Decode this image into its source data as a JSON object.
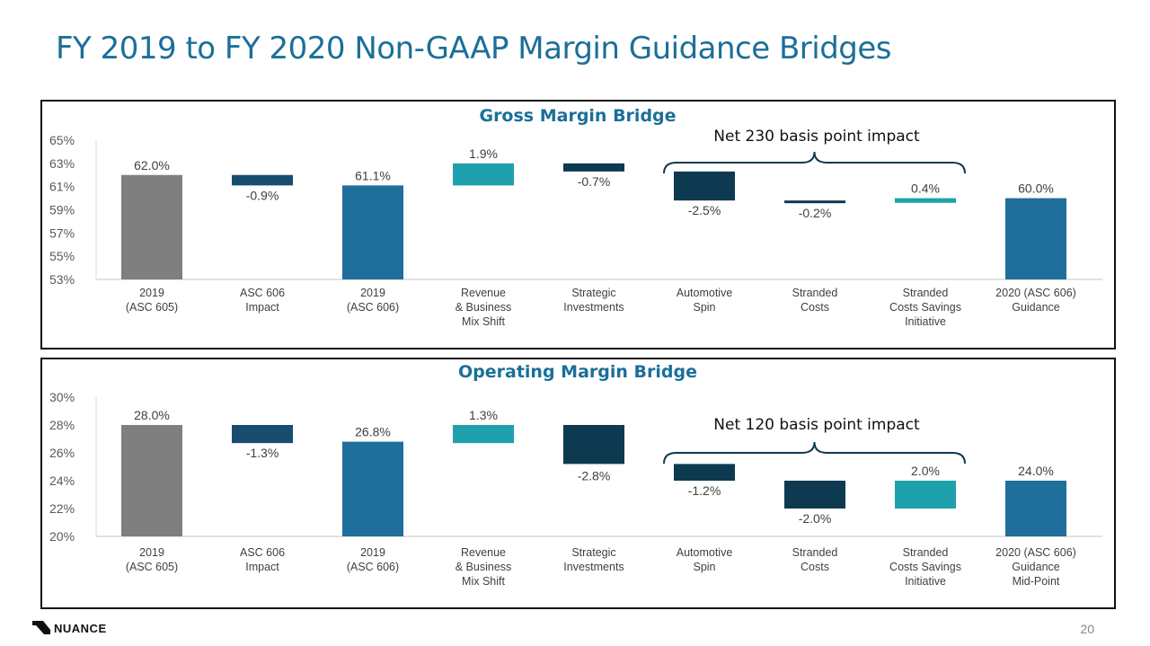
{
  "slide": {
    "title": "FY 2019 to FY 2020 Non-GAAP Margin Guidance Bridges",
    "page_number": "20",
    "logo_text": "NUANCE"
  },
  "colors": {
    "gray": "#7f7f7f",
    "blue_mid": "#1f6e9c",
    "blue_dark": "#0d3a50",
    "navy": "#174d6e",
    "teal": "#1fa0ad"
  },
  "chart_data": [
    {
      "type": "bar",
      "title": "Gross Margin Bridge",
      "annotation": "Net 230 basis point impact",
      "categories": [
        [
          "2019",
          "(ASC 605)"
        ],
        [
          "ASC 606",
          "Impact"
        ],
        [
          "2019",
          "(ASC 606)"
        ],
        [
          "Revenue",
          "& Business",
          "Mix Shift"
        ],
        [
          "Strategic",
          "Investments"
        ],
        [
          "Automotive",
          "Spin"
        ],
        [
          "Stranded",
          "Costs"
        ],
        [
          "Stranded",
          "Costs Savings",
          "Initiative"
        ],
        [
          "2020 (ASC 606)",
          "Guidance"
        ]
      ],
      "bars": [
        {
          "start": 53.0,
          "end": 62.0,
          "label": "62.0%",
          "color": "gray"
        },
        {
          "start": 62.0,
          "end": 61.1,
          "label": "-0.9%",
          "color": "navy"
        },
        {
          "start": 53.0,
          "end": 61.1,
          "label": "61.1%",
          "color": "blue_mid"
        },
        {
          "start": 61.1,
          "end": 63.0,
          "label": "1.9%",
          "color": "teal"
        },
        {
          "start": 63.0,
          "end": 62.3,
          "label": "-0.7%",
          "color": "blue_dark"
        },
        {
          "start": 62.3,
          "end": 59.8,
          "label": "-2.5%",
          "color": "blue_dark"
        },
        {
          "start": 59.8,
          "end": 59.6,
          "label": "-0.2%",
          "color": "blue_dark"
        },
        {
          "start": 59.6,
          "end": 60.0,
          "label": "0.4%",
          "color": "teal"
        },
        {
          "start": 53.0,
          "end": 60.0,
          "label": "60.0%",
          "color": "blue_mid"
        }
      ],
      "yticks": [
        "53%",
        "55%",
        "57%",
        "59%",
        "61%",
        "63%",
        "65%"
      ],
      "ylim": [
        53,
        65
      ]
    },
    {
      "type": "bar",
      "title": "Operating Margin Bridge",
      "annotation": "Net 120 basis point impact",
      "categories": [
        [
          "2019",
          "(ASC 605)"
        ],
        [
          "ASC 606",
          "Impact"
        ],
        [
          "2019",
          "(ASC 606)"
        ],
        [
          "Revenue",
          "& Business",
          "Mix Shift"
        ],
        [
          "Strategic",
          "Investments"
        ],
        [
          "Automotive",
          "Spin"
        ],
        [
          "Stranded",
          "Costs"
        ],
        [
          "Stranded",
          "Costs Savings",
          "Initiative"
        ],
        [
          "2020 (ASC 606)",
          "Guidance",
          "Mid-Point"
        ]
      ],
      "bars": [
        {
          "start": 20.0,
          "end": 28.0,
          "label": "28.0%",
          "color": "gray"
        },
        {
          "start": 28.0,
          "end": 26.7,
          "label": "-1.3%",
          "color": "navy"
        },
        {
          "start": 20.0,
          "end": 26.8,
          "label": "26.8%",
          "color": "blue_mid"
        },
        {
          "start": 26.7,
          "end": 28.0,
          "label": "1.3%",
          "color": "teal"
        },
        {
          "start": 28.0,
          "end": 25.2,
          "label": "-2.8%",
          "color": "blue_dark"
        },
        {
          "start": 25.2,
          "end": 24.0,
          "label": "-1.2%",
          "color": "blue_dark"
        },
        {
          "start": 24.0,
          "end": 22.0,
          "label": "-2.0%",
          "color": "blue_dark"
        },
        {
          "start": 22.0,
          "end": 24.0,
          "label": "2.0%",
          "color": "teal"
        },
        {
          "start": 20.0,
          "end": 24.0,
          "label": "24.0%",
          "color": "blue_mid"
        }
      ],
      "yticks": [
        "20%",
        "22%",
        "24%",
        "26%",
        "28%",
        "30%"
      ],
      "ylim": [
        20,
        30
      ]
    }
  ]
}
